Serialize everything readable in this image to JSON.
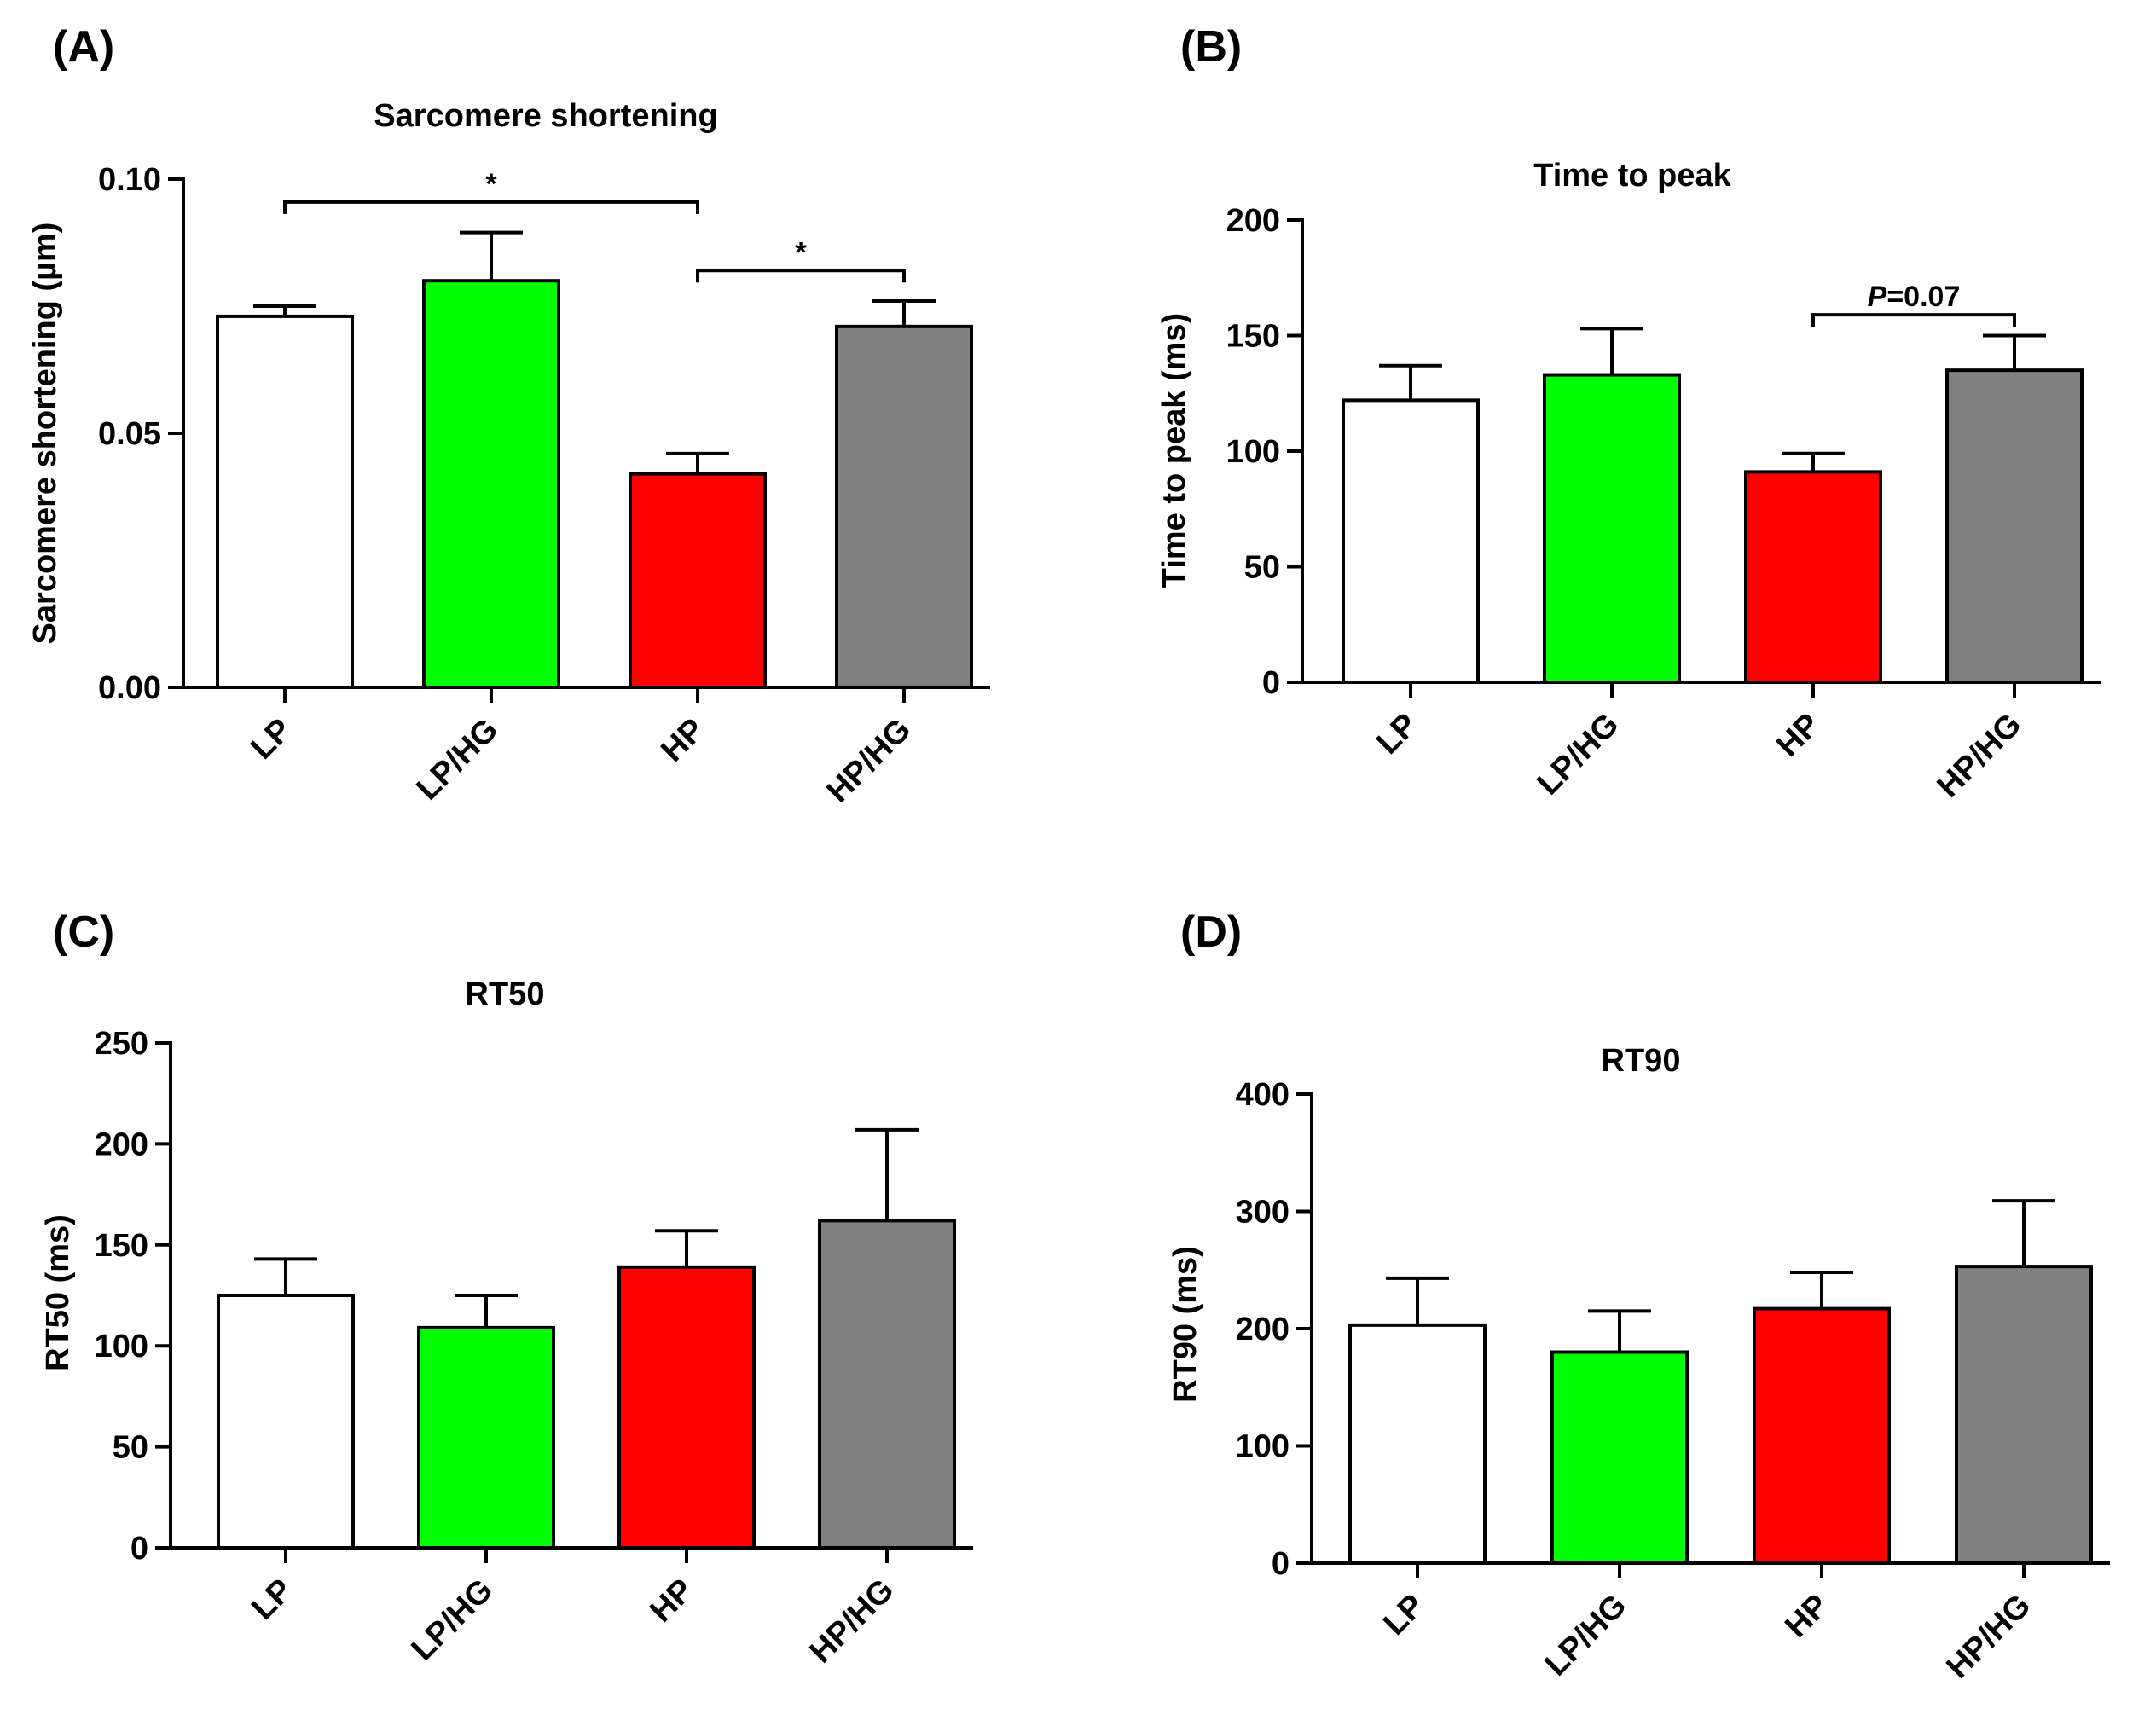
{
  "chart_data": [
    {
      "type": "bar",
      "panel_label": "(A)",
      "title": "Sarcomere shortening",
      "ylabel": "Sarcomere shortening (µm)",
      "xlabel": "",
      "categories": [
        "LP",
        "LP/HG",
        "HP",
        "HP/HG"
      ],
      "values": [
        0.073,
        0.08,
        0.042,
        0.071
      ],
      "errors": [
        0.002,
        0.0095,
        0.004,
        0.005
      ],
      "colors": [
        "#ffffff",
        "#00ff00",
        "#ff0000",
        "#808080"
      ],
      "ylim": [
        0,
        0.1
      ],
      "yticks": [
        0.0,
        0.05,
        0.1
      ],
      "ytick_labels": [
        "0.00",
        "0.05",
        "0.10"
      ],
      "grid": false,
      "annotations": [
        {
          "from": 0,
          "to": 2,
          "y": 0.0955,
          "text": "*"
        },
        {
          "from": 2,
          "to": 3,
          "y": 0.082,
          "text": "*"
        }
      ]
    },
    {
      "type": "bar",
      "panel_label": "(B)",
      "title": "Time to peak",
      "ylabel": "Time to peak (ms)",
      "xlabel": "",
      "categories": [
        "LP",
        "LP/HG",
        "HP",
        "HP/HG"
      ],
      "values": [
        122,
        133,
        91,
        135
      ],
      "errors": [
        15,
        20,
        8,
        15
      ],
      "colors": [
        "#ffffff",
        "#00ff00",
        "#ff0000",
        "#808080"
      ],
      "ylim": [
        0,
        200
      ],
      "yticks": [
        0,
        50,
        100,
        150,
        200
      ],
      "ytick_labels": [
        "0",
        "50",
        "100",
        "150",
        "200"
      ],
      "grid": false,
      "annotations": [
        {
          "from": 2,
          "to": 3,
          "y": 159,
          "text": "P=0.07",
          "italic_prefix": "P"
        }
      ]
    },
    {
      "type": "bar",
      "panel_label": "(C)",
      "title": "RT50",
      "ylabel": "RT50 (ms)",
      "xlabel": "",
      "categories": [
        "LP",
        "LP/HG",
        "HP",
        "HP/HG"
      ],
      "values": [
        125,
        109,
        139,
        162
      ],
      "errors": [
        18,
        16,
        18,
        45
      ],
      "colors": [
        "#ffffff",
        "#00ff00",
        "#ff0000",
        "#808080"
      ],
      "ylim": [
        0,
        250
      ],
      "yticks": [
        0,
        50,
        100,
        150,
        200,
        250
      ],
      "ytick_labels": [
        "0",
        "50",
        "100",
        "150",
        "200",
        "250"
      ],
      "grid": false,
      "annotations": []
    },
    {
      "type": "bar",
      "panel_label": "(D)",
      "title": "RT90",
      "ylabel": "RT90 (ms)",
      "xlabel": "",
      "categories": [
        "LP",
        "LP/HG",
        "HP",
        "HP/HG"
      ],
      "values": [
        203,
        180,
        217,
        253
      ],
      "errors": [
        40,
        35,
        31,
        56
      ],
      "colors": [
        "#ffffff",
        "#00ff00",
        "#ff0000",
        "#808080"
      ],
      "ylim": [
        0,
        400
      ],
      "yticks": [
        0,
        100,
        200,
        300,
        400
      ],
      "ytick_labels": [
        "0",
        "100",
        "200",
        "300",
        "400"
      ],
      "grid": false,
      "annotations": []
    }
  ]
}
